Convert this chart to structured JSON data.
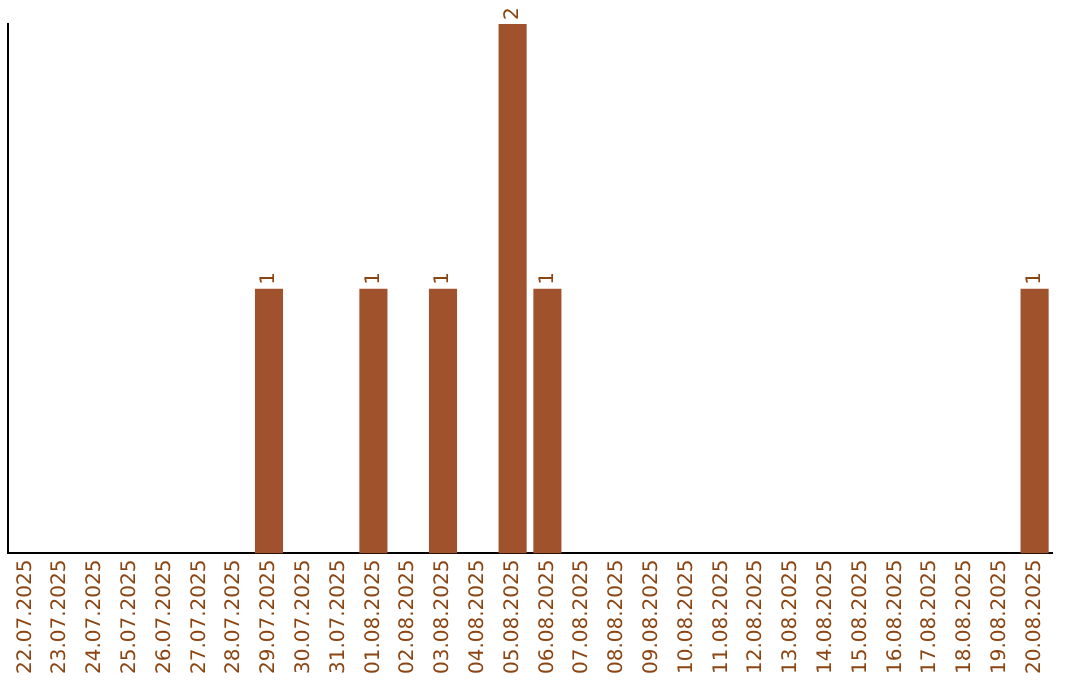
{
  "chart_data": {
    "type": "bar",
    "categories": [
      "22.07.2025",
      "23.07.2025",
      "24.07.2025",
      "25.07.2025",
      "26.07.2025",
      "27.07.2025",
      "28.07.2025",
      "29.07.2025",
      "30.07.2025",
      "31.07.2025",
      "01.08.2025",
      "02.08.2025",
      "03.08.2025",
      "04.08.2025",
      "05.08.2025",
      "06.08.2025",
      "07.08.2025",
      "08.08.2025",
      "09.08.2025",
      "10.08.2025",
      "11.08.2025",
      "12.08.2025",
      "13.08.2025",
      "14.08.2025",
      "15.08.2025",
      "16.08.2025",
      "17.08.2025",
      "18.08.2025",
      "19.08.2025",
      "20.08.2025"
    ],
    "values": [
      0,
      0,
      0,
      0,
      0,
      0,
      0,
      1,
      0,
      0,
      1,
      0,
      1,
      0,
      2,
      1,
      0,
      0,
      0,
      0,
      0,
      0,
      0,
      0,
      0,
      0,
      0,
      0,
      0,
      1
    ],
    "value_labels": [
      null,
      null,
      null,
      null,
      null,
      null,
      null,
      "1",
      null,
      null,
      "1",
      null,
      "1",
      null,
      "2",
      "1",
      null,
      null,
      null,
      null,
      null,
      null,
      null,
      null,
      null,
      null,
      null,
      null,
      null,
      "1"
    ],
    "color": "#a0522d",
    "ylim": [
      0,
      2
    ],
    "tick_labels": "x",
    "grid": false,
    "legend": false
  }
}
